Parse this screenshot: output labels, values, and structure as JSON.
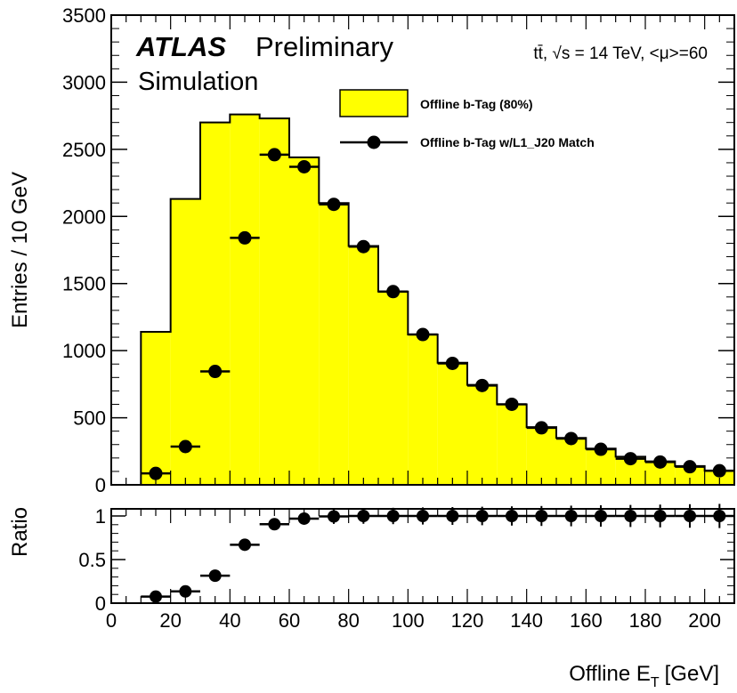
{
  "chart_data": [
    {
      "type": "bar",
      "panel": "main",
      "ylabel": "Entries / 10 GeV",
      "ylim": [
        0,
        3500
      ],
      "xlim": [
        0,
        210
      ],
      "yticks": [
        "0",
        "500",
        "1000",
        "1500",
        "2000",
        "2500",
        "3000",
        "3500"
      ],
      "bin_edges": [
        10,
        20,
        30,
        40,
        50,
        60,
        70,
        80,
        90,
        100,
        110,
        120,
        130,
        140,
        150,
        160,
        170,
        180,
        190,
        200,
        210
      ],
      "series": [
        {
          "name": "Offline b-Tag (80%)",
          "style": "filled-histogram",
          "color": "#ffff00",
          "values": [
            1140,
            2130,
            2700,
            2760,
            2730,
            2440,
            2100,
            1780,
            1440,
            1120,
            910,
            745,
            600,
            430,
            350,
            270,
            210,
            175,
            140,
            105
          ]
        },
        {
          "name": "Offline b-Tag w/L1_J20 Match",
          "style": "points",
          "color": "#000000",
          "values": [
            85,
            285,
            845,
            1840,
            2460,
            2370,
            2090,
            1775,
            1440,
            1120,
            905,
            740,
            600,
            425,
            345,
            265,
            195,
            170,
            135,
            105
          ]
        }
      ],
      "annotations": {
        "atlas": "ATLAS",
        "preliminary": "Preliminary",
        "simulation": "Simulation",
        "conditions": "tt̄, √s = 14 TeV, <μ>=60"
      }
    },
    {
      "type": "scatter",
      "panel": "ratio",
      "ylabel": "Ratio",
      "xlabel": "Offline E_T [GeV]",
      "xlabel_main": "Offline E",
      "xlabel_sub": "T",
      "xlabel_unit": "[GeV]",
      "ylim": [
        0,
        1.05
      ],
      "xlim": [
        0,
        210
      ],
      "yticks": [
        "0",
        "0.5",
        "1"
      ],
      "xticks": [
        "0",
        "20",
        "40",
        "60",
        "80",
        "100",
        "120",
        "140",
        "160",
        "180",
        "200"
      ],
      "x": [
        15,
        25,
        35,
        45,
        55,
        65,
        75,
        85,
        95,
        105,
        115,
        125,
        135,
        145,
        155,
        165,
        175,
        185,
        195,
        205
      ],
      "values": [
        0.075,
        0.135,
        0.315,
        0.67,
        0.905,
        0.97,
        0.995,
        1.0,
        1.0,
        1.0,
        1.0,
        1.0,
        1.0,
        1.0,
        1.0,
        1.0,
        1.0,
        1.0,
        1.0,
        1.0
      ]
    }
  ]
}
